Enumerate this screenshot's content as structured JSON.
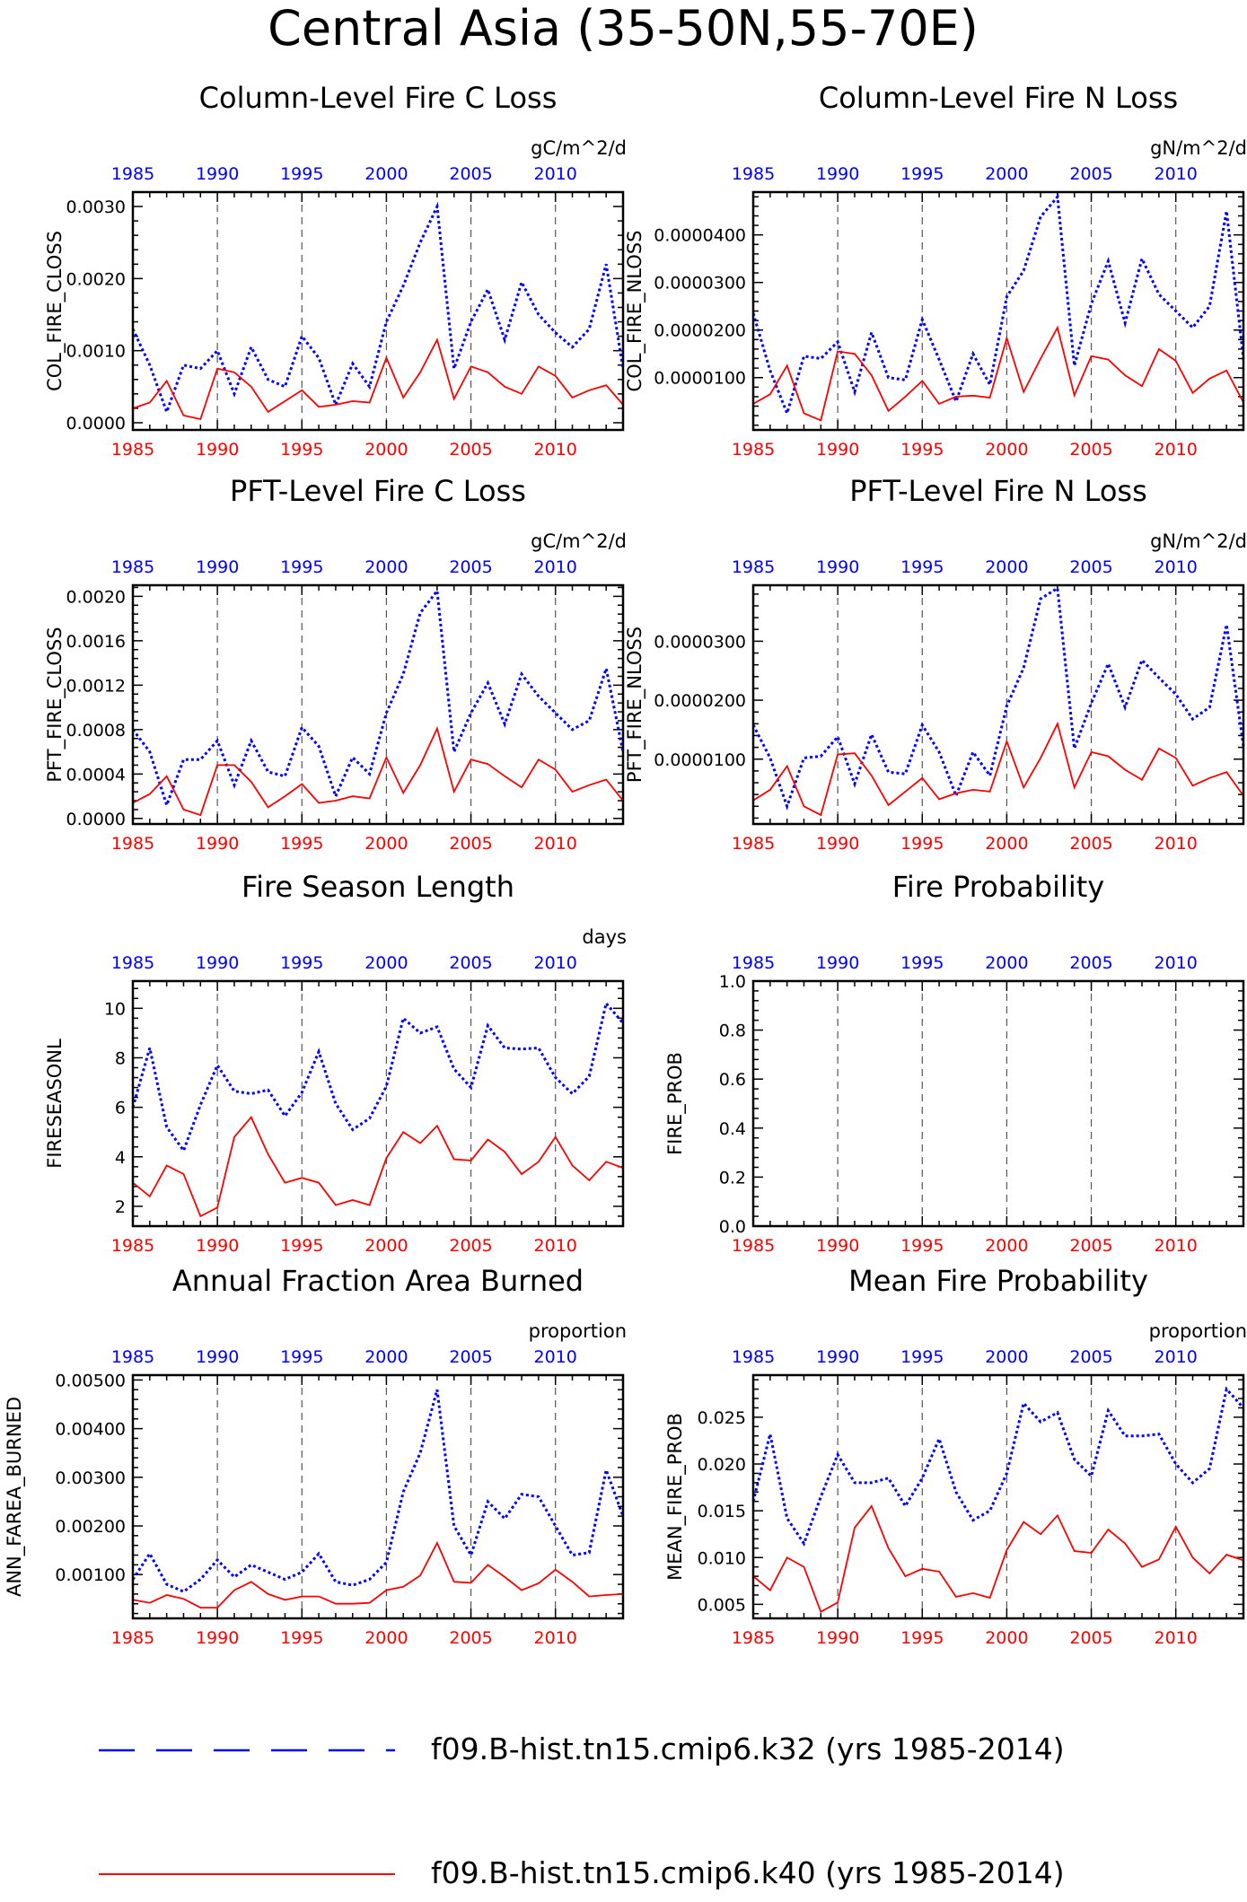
{
  "title": "Central Asia (35-50N,55-70E)",
  "colors": {
    "k32": "#0000ff",
    "k40": "#ff0000"
  },
  "legend": [
    {
      "label": "f09.B-hist.tn15.cmip6.k32 (yrs 1985-2014)",
      "color": "#0000ff",
      "style": "dashed"
    },
    {
      "label": "f09.B-hist.tn15.cmip6.k40 (yrs 1985-2014)",
      "color": "#ff0000",
      "style": "solid"
    }
  ],
  "chart_data": [
    {
      "type": "line",
      "title": "Column-Level Fire C Loss",
      "units": "gC/m^2/d",
      "ylabel": "COL_FIRE_CLOSS",
      "xlim": [
        1985,
        2014
      ],
      "xticks": [
        1985,
        1990,
        1995,
        2000,
        2005,
        2010
      ],
      "ylim": [
        -0.0001,
        0.0032
      ],
      "yticks": [
        0.0,
        0.001,
        0.002,
        0.003
      ],
      "ytick_labels": [
        "0.0000",
        "0.0010",
        "0.0020",
        "0.0030"
      ],
      "x": [
        1985,
        1986,
        1987,
        1988,
        1989,
        1990,
        1991,
        1992,
        1993,
        1994,
        1995,
        1996,
        1997,
        1998,
        1999,
        2000,
        2001,
        2002,
        2003,
        2004,
        2005,
        2006,
        2007,
        2008,
        2009,
        2010,
        2011,
        2012,
        2013,
        2014
      ],
      "series": [
        {
          "name": "f09.B-hist.tn15.cmip6.k32",
          "values": [
            0.0013,
            0.0008,
            0.00015,
            0.0008,
            0.00075,
            0.001,
            0.0004,
            0.00105,
            0.0006,
            0.0005,
            0.0012,
            0.0009,
            0.00025,
            0.00082,
            0.0005,
            0.0014,
            0.0019,
            0.0025,
            0.003,
            0.00075,
            0.0014,
            0.00185,
            0.00115,
            0.00195,
            0.0015,
            0.00125,
            0.00105,
            0.0013,
            0.0022,
            0.00075
          ]
        },
        {
          "name": "f09.B-hist.tn15.cmip6.k40",
          "values": [
            0.0002,
            0.00028,
            0.00058,
            0.0001,
            5e-05,
            0.00075,
            0.0007,
            0.0005,
            0.00015,
            0.0003,
            0.00045,
            0.00022,
            0.00025,
            0.0003,
            0.00028,
            0.0009,
            0.00035,
            0.0007,
            0.00115,
            0.00033,
            0.00078,
            0.0007,
            0.0005,
            0.0004,
            0.00078,
            0.00065,
            0.00035,
            0.00045,
            0.00052,
            0.00025
          ]
        }
      ]
    },
    {
      "type": "line",
      "title": "Column-Level Fire N Loss",
      "units": "gN/m^2/d",
      "ylabel": "COL_FIRE_NLOSS",
      "xlim": [
        1985,
        2014
      ],
      "xticks": [
        1985,
        1990,
        1995,
        2000,
        2005,
        2010
      ],
      "ylim": [
        -1e-06,
        4.9e-05
      ],
      "yticks": [
        1e-05,
        2e-05,
        3e-05,
        4e-05
      ],
      "ytick_labels": [
        "0.0000100",
        "0.0000200",
        "0.0000300",
        "0.0000400"
      ],
      "x": [
        1985,
        1986,
        1987,
        1988,
        1989,
        1990,
        1991,
        1992,
        1993,
        1994,
        1995,
        1996,
        1997,
        1998,
        1999,
        2000,
        2001,
        2002,
        2003,
        2004,
        2005,
        2006,
        2007,
        2008,
        2009,
        2010,
        2011,
        2012,
        2013,
        2014
      ],
      "series": [
        {
          "name": "f09.B-hist.tn15.cmip6.k32",
          "values": [
            2.35e-05,
            1.15e-05,
            2.5e-06,
            1.45e-05,
            1.4e-05,
            1.75e-05,
            7e-06,
            1.95e-05,
            1e-05,
            9.5e-06,
            2.22e-05,
            1.38e-05,
            5e-06,
            1.5e-05,
            8.5e-06,
            2.7e-05,
            3.25e-05,
            4.38e-05,
            4.8e-05,
            1.25e-05,
            2.55e-05,
            3.45e-05,
            2.15e-05,
            3.5e-05,
            2.75e-05,
            2.4e-05,
            2.05e-05,
            2.5e-05,
            4.5e-05,
            1.4e-05
          ]
        },
        {
          "name": "f09.B-hist.tn15.cmip6.k40",
          "values": [
            4.5e-06,
            6.5e-06,
            1.25e-05,
            2.5e-06,
            1e-06,
            1.55e-05,
            1.5e-05,
            1.05e-05,
            3e-06,
            6e-06,
            9.3e-06,
            4.5e-06,
            6e-06,
            6.2e-06,
            5.8e-06,
            1.83e-05,
            7e-06,
            1.4e-05,
            2.05e-05,
            6.3e-06,
            1.45e-05,
            1.38e-05,
            1.05e-05,
            8.2e-06,
            1.6e-05,
            1.35e-05,
            6.8e-06,
            9.8e-06,
            1.15e-05,
            4.8e-06
          ]
        }
      ]
    },
    {
      "type": "line",
      "title": "PFT-Level Fire C Loss",
      "units": "gC/m^2/d",
      "ylabel": "PFT_FIRE_CLOSS",
      "xlim": [
        1985,
        2014
      ],
      "xticks": [
        1985,
        1990,
        1995,
        2000,
        2005,
        2010
      ],
      "ylim": [
        -5e-05,
        0.0021
      ],
      "yticks": [
        0.0,
        0.0004,
        0.0008,
        0.0012,
        0.0016,
        0.002
      ],
      "ytick_labels": [
        "0.0000",
        "0.0004",
        "0.0008",
        "0.0012",
        "0.0016",
        "0.0020"
      ],
      "x": [
        1985,
        1986,
        1987,
        1988,
        1989,
        1990,
        1991,
        1992,
        1993,
        1994,
        1995,
        1996,
        1997,
        1998,
        1999,
        2000,
        2001,
        2002,
        2003,
        2004,
        2005,
        2006,
        2007,
        2008,
        2009,
        2010,
        2011,
        2012,
        2013,
        2014
      ],
      "series": [
        {
          "name": "f09.B-hist.tn15.cmip6.k32",
          "values": [
            0.0008,
            0.0006,
            0.00012,
            0.00053,
            0.00053,
            0.0007,
            0.0003,
            0.0007,
            0.00042,
            0.00038,
            0.00082,
            0.00065,
            0.0002,
            0.00055,
            0.0004,
            0.00095,
            0.0013,
            0.00185,
            0.00205,
            0.0006,
            0.00095,
            0.00122,
            0.00085,
            0.0013,
            0.0011,
            0.00095,
            0.0008,
            0.00088,
            0.00135,
            0.0006
          ]
        },
        {
          "name": "f09.B-hist.tn15.cmip6.k40",
          "values": [
            0.00014,
            0.00022,
            0.00038,
            8e-05,
            3e-05,
            0.00048,
            0.00048,
            0.00033,
            0.0001,
            0.0002,
            0.00031,
            0.00014,
            0.00016,
            0.0002,
            0.00018,
            0.00055,
            0.00023,
            0.00048,
            0.00081,
            0.00024,
            0.00053,
            0.00049,
            0.00038,
            0.00028,
            0.00053,
            0.00044,
            0.00024,
            0.0003,
            0.00035,
            0.00016
          ]
        }
      ]
    },
    {
      "type": "line",
      "title": "PFT-Level Fire N Loss",
      "units": "gN/m^2/d",
      "ylabel": "PFT_FIRE_NLOSS",
      "xlim": [
        1985,
        2014
      ],
      "xticks": [
        1985,
        1990,
        1995,
        2000,
        2005,
        2010
      ],
      "ylim": [
        -1e-06,
        3.95e-05
      ],
      "yticks": [
        1e-05,
        2e-05,
        3e-05
      ],
      "ytick_labels": [
        "0.0000100",
        "0.0000200",
        "0.0000300"
      ],
      "x": [
        1985,
        1986,
        1987,
        1988,
        1989,
        1990,
        1991,
        1992,
        1993,
        1994,
        1995,
        1996,
        1997,
        1998,
        1999,
        2000,
        2001,
        2002,
        2003,
        2004,
        2005,
        2006,
        2007,
        2008,
        2009,
        2010,
        2011,
        2012,
        2013,
        2014
      ],
      "series": [
        {
          "name": "f09.B-hist.tn15.cmip6.k32",
          "values": [
            1.58e-05,
            1.02e-05,
            2e-06,
            1.02e-05,
            1.05e-05,
            1.38e-05,
            5.8e-06,
            1.42e-05,
            7.8e-06,
            7.5e-06,
            1.58e-05,
            1.12e-05,
            3.8e-06,
            1.12e-05,
            7.2e-06,
            1.9e-05,
            2.55e-05,
            3.72e-05,
            3.9e-05,
            1.18e-05,
            1.95e-05,
            2.62e-05,
            1.88e-05,
            2.68e-05,
            2.38e-05,
            2.1e-05,
            1.68e-05,
            1.88e-05,
            3.28e-05,
            1.22e-05
          ]
        },
        {
          "name": "f09.B-hist.tn15.cmip6.k40",
          "values": [
            3e-06,
            4.8e-06,
            8.8e-06,
            2e-06,
            5e-07,
            1.08e-05,
            1.1e-05,
            7.2e-06,
            2.2e-06,
            4.5e-06,
            6.8e-06,
            3.2e-06,
            4.2e-06,
            4.8e-06,
            4.5e-06,
            1.3e-05,
            5.2e-06,
            1.02e-05,
            1.6e-05,
            5.2e-06,
            1.12e-05,
            1.05e-05,
            8.2e-06,
            6.5e-06,
            1.18e-05,
            1.02e-05,
            5.5e-06,
            6.8e-06,
            7.8e-06,
            3.8e-06
          ]
        }
      ]
    },
    {
      "type": "line",
      "title": "Fire Season Length",
      "units": "days",
      "ylabel": "FIRESEASONL",
      "xlim": [
        1985,
        2014
      ],
      "xticks": [
        1985,
        1990,
        1995,
        2000,
        2005,
        2010
      ],
      "ylim": [
        1.2,
        11.1
      ],
      "yticks": [
        2,
        4,
        6,
        8,
        10
      ],
      "ytick_labels": [
        "2",
        "4",
        "6",
        "8",
        "10"
      ],
      "x": [
        1985,
        1986,
        1987,
        1988,
        1989,
        1990,
        1991,
        1992,
        1993,
        1994,
        1995,
        1996,
        1997,
        1998,
        1999,
        2000,
        2001,
        2002,
        2003,
        2004,
        2005,
        2006,
        2007,
        2008,
        2009,
        2010,
        2011,
        2012,
        2013,
        2014
      ],
      "series": [
        {
          "name": "f09.B-hist.tn15.cmip6.k32",
          "values": [
            6.0,
            8.4,
            5.2,
            4.25,
            6.1,
            7.7,
            6.65,
            6.55,
            6.7,
            5.65,
            6.6,
            8.25,
            6.15,
            5.1,
            5.55,
            6.85,
            9.6,
            9.0,
            9.25,
            7.55,
            6.8,
            9.3,
            8.4,
            8.35,
            8.4,
            7.2,
            6.55,
            7.25,
            10.2,
            9.4
          ]
        },
        {
          "name": "f09.B-hist.tn15.cmip6.k40",
          "values": [
            2.95,
            2.4,
            3.65,
            3.3,
            1.6,
            1.95,
            4.8,
            5.6,
            4.1,
            2.95,
            3.15,
            2.95,
            2.05,
            2.25,
            2.05,
            3.95,
            5.0,
            4.55,
            5.25,
            3.9,
            3.85,
            4.7,
            4.2,
            3.3,
            3.8,
            4.8,
            3.65,
            3.05,
            3.8,
            3.55
          ]
        }
      ]
    },
    {
      "type": "line",
      "title": "Fire Probability",
      "units": "",
      "ylabel": "FIRE_PROB",
      "xlim": [
        1985,
        2014
      ],
      "xticks": [
        1985,
        1990,
        1995,
        2000,
        2005,
        2010
      ],
      "ylim": [
        0.0,
        1.0
      ],
      "yticks": [
        0.0,
        0.2,
        0.4,
        0.6,
        0.8,
        1.0
      ],
      "ytick_labels": [
        "0.0",
        "0.2",
        "0.4",
        "0.6",
        "0.8",
        "1.0"
      ],
      "x": [],
      "series": []
    },
    {
      "type": "line",
      "title": "Annual Fraction Area Burned",
      "units": "proportion",
      "ylabel": "ANN_FAREA_BURNED",
      "xlim": [
        1985,
        2014
      ],
      "xticks": [
        1985,
        1990,
        1995,
        2000,
        2005,
        2010
      ],
      "ylim": [
        0.0001,
        0.0051
      ],
      "yticks": [
        0.001,
        0.002,
        0.003,
        0.004,
        0.005
      ],
      "ytick_labels": [
        "0.00100",
        "0.00200",
        "0.00300",
        "0.00400",
        "0.00500"
      ],
      "x": [
        1985,
        1986,
        1987,
        1988,
        1989,
        1990,
        1991,
        1992,
        1993,
        1994,
        1995,
        1996,
        1997,
        1998,
        1999,
        2000,
        2001,
        2002,
        2003,
        2004,
        2005,
        2006,
        2007,
        2008,
        2009,
        2010,
        2011,
        2012,
        2013,
        2014
      ],
      "series": [
        {
          "name": "f09.B-hist.tn15.cmip6.k32",
          "values": [
            0.0009,
            0.00143,
            0.0008,
            0.00065,
            0.0009,
            0.0013,
            0.00095,
            0.0012,
            0.00105,
            0.0009,
            0.00105,
            0.00143,
            0.00085,
            0.00078,
            0.0009,
            0.00125,
            0.0027,
            0.0035,
            0.0048,
            0.002,
            0.0014,
            0.0025,
            0.00215,
            0.00265,
            0.0026,
            0.002,
            0.0014,
            0.00145,
            0.00315,
            0.0022
          ]
        },
        {
          "name": "f09.B-hist.tn15.cmip6.k40",
          "values": [
            0.00048,
            0.00042,
            0.00058,
            0.0005,
            0.00032,
            0.00032,
            0.00068,
            0.00085,
            0.0006,
            0.00048,
            0.00055,
            0.00055,
            0.0004,
            0.0004,
            0.00042,
            0.00068,
            0.00075,
            0.00098,
            0.00165,
            0.00085,
            0.00083,
            0.0012,
            0.00095,
            0.00068,
            0.00082,
            0.0011,
            0.00085,
            0.00055,
            0.00058,
            0.0006
          ]
        }
      ]
    },
    {
      "type": "line",
      "title": "Mean Fire Probability",
      "units": "proportion",
      "ylabel": "MEAN_FIRE_PROB",
      "xlim": [
        1985,
        2014
      ],
      "xticks": [
        1985,
        1990,
        1995,
        2000,
        2005,
        2010
      ],
      "ylim": [
        0.0035,
        0.0295
      ],
      "yticks": [
        0.005,
        0.01,
        0.015,
        0.02,
        0.025
      ],
      "ytick_labels": [
        "0.005",
        "0.010",
        "0.015",
        "0.020",
        "0.025"
      ],
      "x": [
        1985,
        1986,
        1987,
        1988,
        1989,
        1990,
        1991,
        1992,
        1993,
        1994,
        1995,
        1996,
        1997,
        1998,
        1999,
        2000,
        2001,
        2002,
        2003,
        2004,
        2005,
        2006,
        2007,
        2008,
        2009,
        2010,
        2011,
        2012,
        2013,
        2014
      ],
      "series": [
        {
          "name": "f09.B-hist.tn15.cmip6.k32",
          "values": [
            0.016,
            0.0232,
            0.0142,
            0.0115,
            0.0165,
            0.021,
            0.018,
            0.018,
            0.0185,
            0.0155,
            0.0185,
            0.0227,
            0.017,
            0.014,
            0.015,
            0.019,
            0.0265,
            0.0245,
            0.0255,
            0.0205,
            0.0187,
            0.0257,
            0.023,
            0.023,
            0.0232,
            0.02,
            0.018,
            0.0195,
            0.028,
            0.026
          ]
        },
        {
          "name": "f09.B-hist.tn15.cmip6.k40",
          "values": [
            0.008,
            0.0065,
            0.01,
            0.009,
            0.0042,
            0.0052,
            0.0132,
            0.0155,
            0.011,
            0.008,
            0.0088,
            0.0085,
            0.0058,
            0.0062,
            0.0057,
            0.0108,
            0.0138,
            0.0125,
            0.0145,
            0.0107,
            0.0105,
            0.013,
            0.0115,
            0.009,
            0.0098,
            0.0133,
            0.01,
            0.0083,
            0.0103,
            0.0097
          ]
        }
      ]
    }
  ]
}
